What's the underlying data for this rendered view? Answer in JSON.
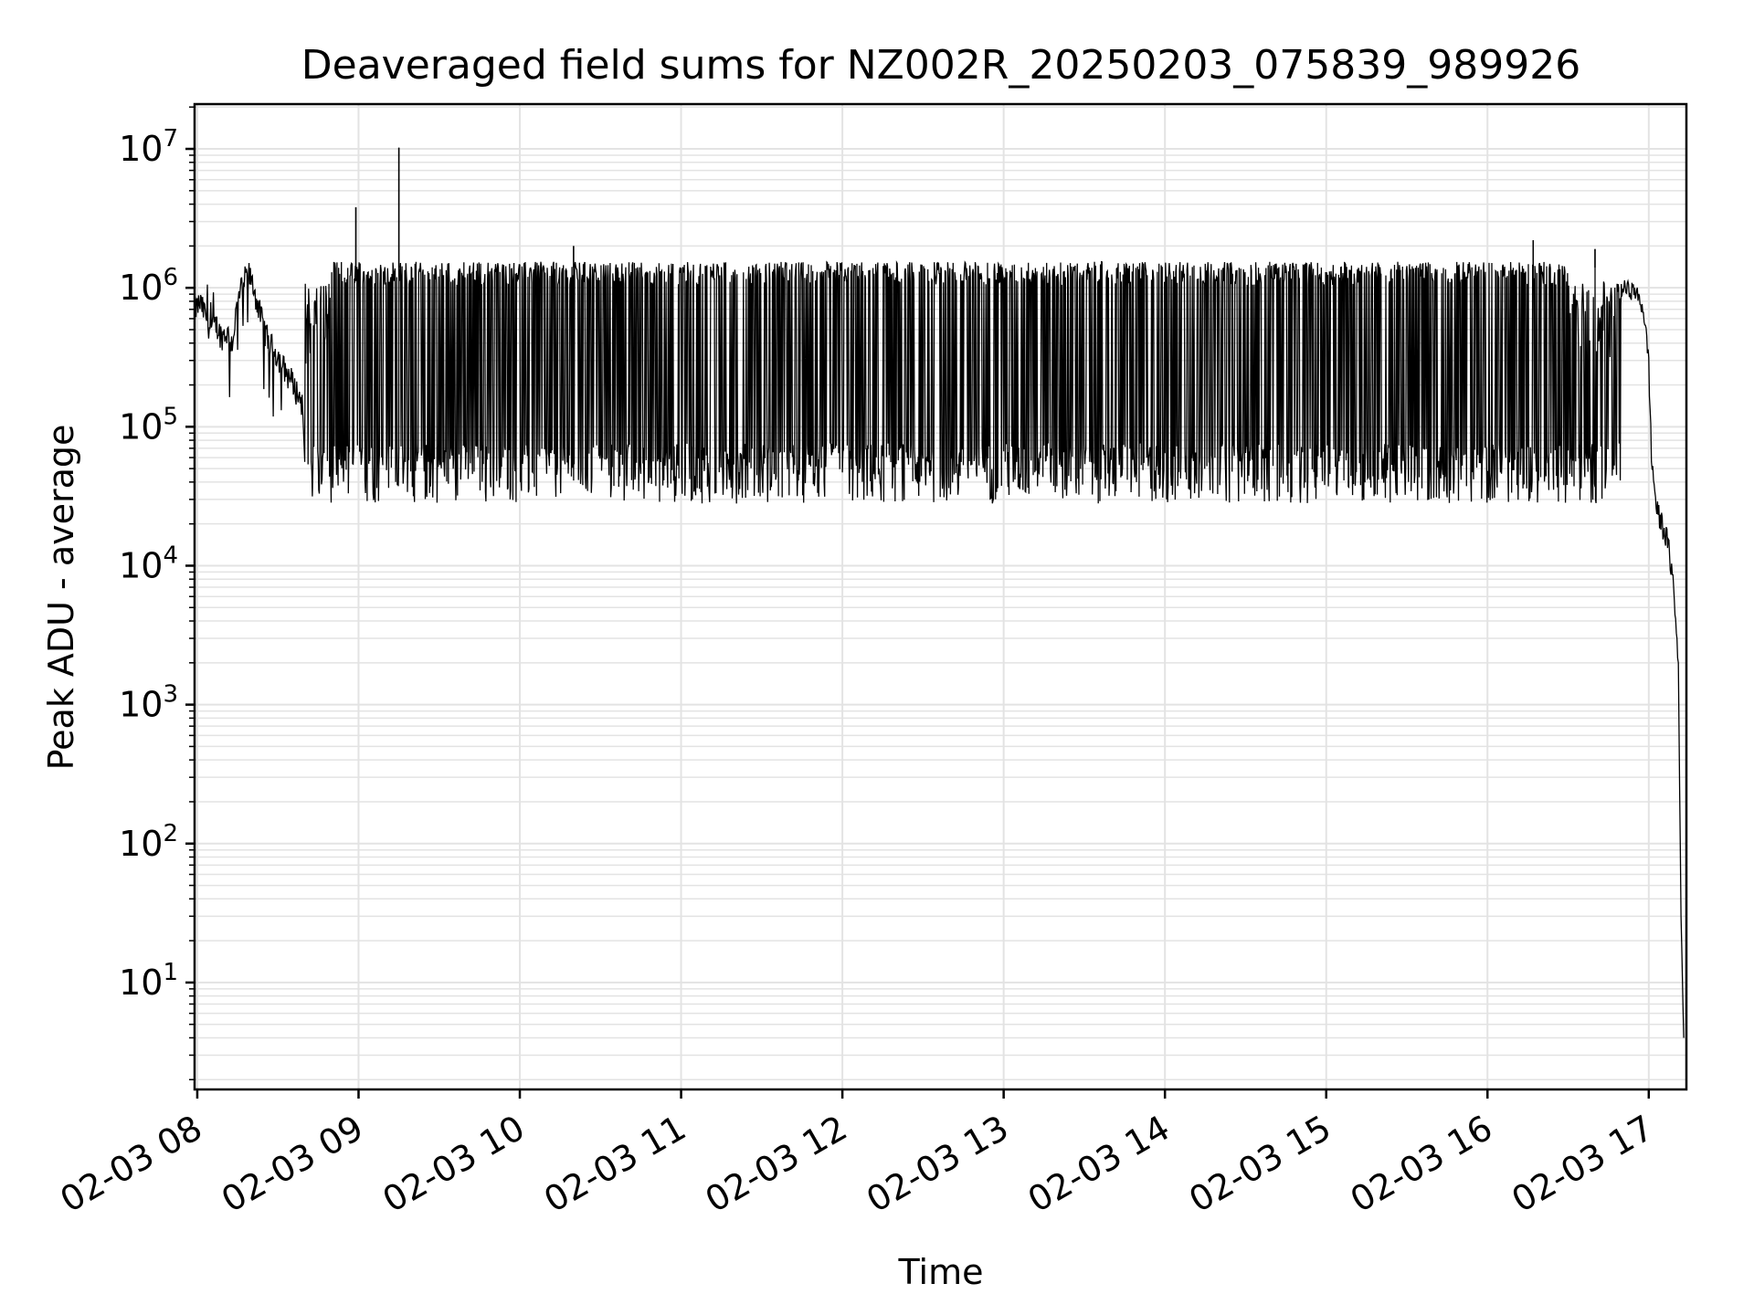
{
  "chart_data": {
    "type": "line",
    "title": "Deaveraged field sums for NZ002R_20250203_075839_989926",
    "xlabel": "Time",
    "ylabel": "Peak ADU - average",
    "yscale": "log",
    "ylim": [
      1.7,
      21000000
    ],
    "xlim": [
      "2025-02-03 07:59",
      "2025-02-03 17:14"
    ],
    "grid": {
      "major": true,
      "minor": true
    },
    "line_color": "#000000",
    "grid_color": "#e3e3e3",
    "x_ticks": [
      {
        "value": "2025-02-03 08:00",
        "label": "02-03 08"
      },
      {
        "value": "2025-02-03 09:00",
        "label": "02-03 09"
      },
      {
        "value": "2025-02-03 10:00",
        "label": "02-03 10"
      },
      {
        "value": "2025-02-03 11:00",
        "label": "02-03 11"
      },
      {
        "value": "2025-02-03 12:00",
        "label": "02-03 12"
      },
      {
        "value": "2025-02-03 13:00",
        "label": "02-03 13"
      },
      {
        "value": "2025-02-03 14:00",
        "label": "02-03 14"
      },
      {
        "value": "2025-02-03 15:00",
        "label": "02-03 15"
      },
      {
        "value": "2025-02-03 16:00",
        "label": "02-03 16"
      },
      {
        "value": "2025-02-03 17:00",
        "label": "02-03 17"
      }
    ],
    "y_ticks": [
      {
        "value": 10,
        "base": "10",
        "exp": "1"
      },
      {
        "value": 100,
        "base": "10",
        "exp": "2"
      },
      {
        "value": 1000,
        "base": "10",
        "exp": "3"
      },
      {
        "value": 10000,
        "base": "10",
        "exp": "4"
      },
      {
        "value": 100000,
        "base": "10",
        "exp": "5"
      },
      {
        "value": 1000000,
        "base": "10",
        "exp": "6"
      },
      {
        "value": 10000000,
        "base": "10",
        "exp": "7"
      }
    ],
    "series": [
      {
        "description": "Detailed 8:00-8:40 segment (clean upper envelope)",
        "x": [
          "2025-02-03 07:59",
          "2025-02-03 08:01",
          "2025-02-03 08:03",
          "2025-02-03 08:05",
          "2025-02-03 08:07",
          "2025-02-03 08:09",
          "2025-02-03 08:11",
          "2025-02-03 08:13",
          "2025-02-03 08:15",
          "2025-02-03 08:17",
          "2025-02-03 08:19",
          "2025-02-03 08:21",
          "2025-02-03 08:23",
          "2025-02-03 08:25",
          "2025-02-03 08:27",
          "2025-02-03 08:29",
          "2025-02-03 08:31",
          "2025-02-03 08:33",
          "2025-02-03 08:35",
          "2025-02-03 08:37",
          "2025-02-03 08:39"
        ],
        "y": [
          700000,
          780000,
          650000,
          500000,
          550000,
          450000,
          480000,
          400000,
          800000,
          1100000,
          1300000,
          1000000,
          700000,
          500000,
          400000,
          350000,
          300000,
          250000,
          220000,
          180000,
          150000
        ]
      },
      {
        "description": "Oscillating band 8:40-16:50 (upper ~1.4e6, lower ~4e4)",
        "upper_envelope": 1400000,
        "lower_envelope": 40000,
        "x_range": [
          "2025-02-03 08:40",
          "2025-02-03 16:50"
        ]
      },
      {
        "description": "Notable spikes",
        "points": [
          {
            "x": "2025-02-03 08:59",
            "y": 3800000
          },
          {
            "x": "2025-02-03 09:15",
            "y": 10200000
          },
          {
            "x": "2025-02-03 10:20",
            "y": 2000000
          },
          {
            "x": "2025-02-03 16:17",
            "y": 2200000
          },
          {
            "x": "2025-02-03 16:40",
            "y": 1900000
          }
        ]
      },
      {
        "description": "Final decay 16:50-17:13",
        "x": [
          "2025-02-03 16:50",
          "2025-02-03 16:55",
          "2025-02-03 16:58",
          "2025-02-03 17:00",
          "2025-02-03 17:01",
          "2025-02-03 17:03",
          "2025-02-03 17:05",
          "2025-02-03 17:07",
          "2025-02-03 17:09",
          "2025-02-03 17:11",
          "2025-02-03 17:12",
          "2025-02-03 17:13"
        ],
        "y": [
          1000000,
          950000,
          700000,
          300000,
          60000,
          25000,
          20000,
          15000,
          8000,
          2000,
          30,
          4
        ]
      }
    ]
  }
}
